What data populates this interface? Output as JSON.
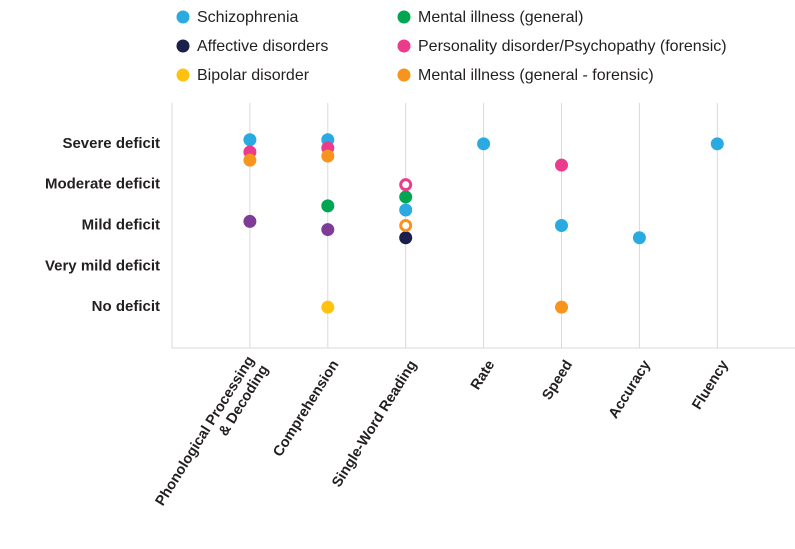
{
  "chart_data": {
    "type": "scatter",
    "categories": [
      "Phonological Processing\n& Decoding",
      "Comprehension",
      "Single-Word Reading",
      "Rate",
      "Speed",
      "Accuracy",
      "Fluency"
    ],
    "ylim": [
      -1,
      5
    ],
    "yticks": [
      {
        "value": 0,
        "label": "No deficit"
      },
      {
        "value": 1,
        "label": "Very mild deficit"
      },
      {
        "value": 2,
        "label": "Mild deficit"
      },
      {
        "value": 3,
        "label": "Moderate deficit"
      },
      {
        "value": 4,
        "label": "Severe deficit"
      }
    ],
    "grid": true,
    "series": [
      {
        "name": "Schizophrenia",
        "color": "#29abe2",
        "values": [
          4.1,
          4.1,
          2.38,
          4,
          null,
          null,
          null
        ]
      },
      {
        "name": "Affective disorders",
        "color": "#1b1f4b",
        "values": [
          null,
          null,
          1.7,
          null,
          null,
          null,
          null
        ]
      },
      {
        "name": "Bipolar disorder",
        "color": "#ffc20e",
        "values": [
          null,
          0,
          null,
          null,
          null,
          null,
          null
        ]
      },
      {
        "name": "Mental illness (general)",
        "color": "#00a651",
        "values": [
          null,
          2.48,
          2.7,
          null,
          null,
          null,
          null
        ]
      },
      {
        "name": "Personality disorder/Psychopathy (forensic)",
        "color": "#ec3b8d",
        "values": [
          3.8,
          3.9,
          3.0,
          null,
          3.48,
          null,
          null
        ],
        "hollow": [
          false,
          false,
          true,
          false,
          false,
          false,
          false
        ]
      },
      {
        "name": "Mental illness (general - forensic)",
        "color": "#f7941d",
        "values": [
          3.6,
          3.7,
          2.0,
          null,
          0,
          null,
          null
        ],
        "hollow": [
          false,
          false,
          true,
          false,
          false,
          false,
          false
        ]
      },
      {
        "color": "#7d3c98",
        "values": [
          2.1,
          1.9,
          null,
          null,
          null,
          null,
          null
        ]
      },
      {
        "color": "#29abe2",
        "values": [
          null,
          null,
          null,
          null,
          2,
          1.7,
          4
        ]
      }
    ]
  }
}
